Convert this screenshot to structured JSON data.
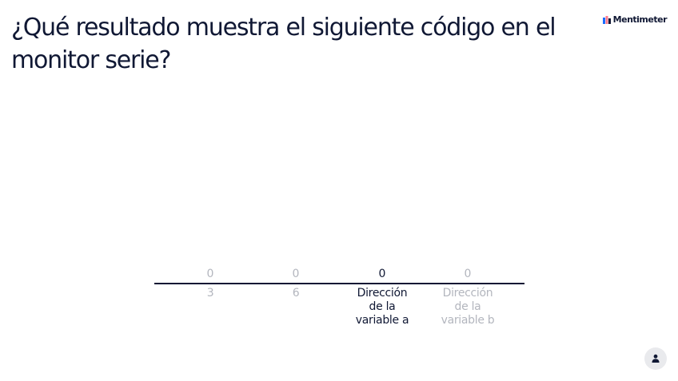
{
  "question": {
    "title": "¿Qué resultado muestra el siguiente código en el monitor serie?"
  },
  "brand": {
    "logo_text": "Mentimeter",
    "logo_icon": "mentimeter-logo-icon",
    "accent_color": "#196cff"
  },
  "chart_data": {
    "type": "bar",
    "categories": [
      "3",
      "6",
      "Dirección de la variable a",
      "Dirección de la variable b"
    ],
    "values": [
      0,
      0,
      0,
      0
    ],
    "highlighted_category": "Dirección de la variable a",
    "title": "",
    "xlabel": "",
    "ylabel": ""
  },
  "chart_text": {
    "values": [
      "0",
      "0",
      "0",
      "0"
    ],
    "labels": [
      [
        "3"
      ],
      [
        "6"
      ],
      [
        "Dirección",
        "de la",
        "variable a"
      ],
      [
        "Dirección",
        "de la",
        "variable b"
      ]
    ]
  },
  "controls": {
    "participant_icon": "user-icon"
  },
  "colors": {
    "text": "#101834",
    "muted": "#b3b6be",
    "button_bg": "#e9eaed"
  }
}
